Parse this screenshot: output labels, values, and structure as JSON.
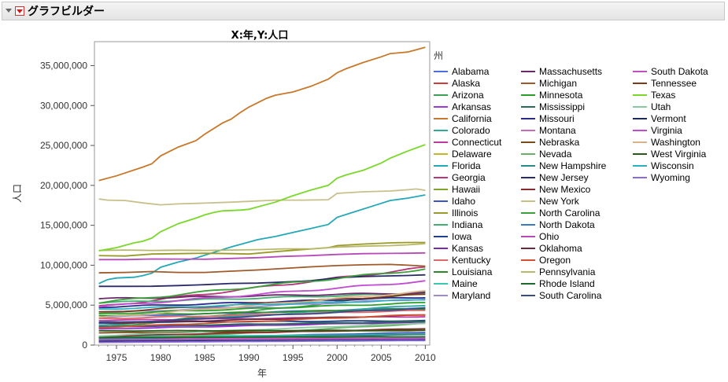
{
  "window": {
    "title": "グラフビルダー"
  },
  "chart_data": {
    "type": "line",
    "title": "X:年,Y:人口",
    "xlabel": "年",
    "ylabel": "人口",
    "legend_title": "州",
    "legend_position": "right",
    "xlim": [
      1972.5,
      2010.5
    ],
    "ylim": [
      0,
      38000000
    ],
    "xticks": [
      1975,
      1980,
      1985,
      1990,
      1995,
      2000,
      2005,
      2010
    ],
    "xtick_labels": [
      "1975",
      "1980",
      "1985",
      "1990",
      "1995",
      "2000",
      "2005",
      "2010"
    ],
    "yticks": [
      0,
      5000000,
      10000000,
      15000000,
      20000000,
      25000000,
      30000000,
      35000000
    ],
    "ytick_labels": [
      "0",
      "5,000,000",
      "10,000,000",
      "15,000,000",
      "20,000,000",
      "25,000,000",
      "30,000,000",
      "35,000,000"
    ],
    "grid": false,
    "series": [
      {
        "name": "Alabama",
        "color": "#4a6ee0",
        "start": 3500000,
        "end": 4700000
      },
      {
        "name": "Alaska",
        "color": "#d13a3a",
        "start": 330000,
        "end": 700000
      },
      {
        "name": "Arizona",
        "color": "#3aa055",
        "start": 2100000,
        "end": 6600000
      },
      {
        "name": "Arkansas",
        "color": "#9b3ad6",
        "start": 2000000,
        "end": 2900000
      },
      {
        "name": "California",
        "color": "#c8782a",
        "start": 20600000,
        "end": 37300000,
        "points": [
          [
            1973,
            20600000
          ],
          [
            1975,
            21200000
          ],
          [
            1978,
            22300000
          ],
          [
            1979,
            22700000
          ],
          [
            1980,
            23700000
          ],
          [
            1982,
            24800000
          ],
          [
            1984,
            25600000
          ],
          [
            1985,
            26400000
          ],
          [
            1987,
            27800000
          ],
          [
            1988,
            28300000
          ],
          [
            1989,
            29100000
          ],
          [
            1990,
            29800000
          ],
          [
            1992,
            30900000
          ],
          [
            1993,
            31300000
          ],
          [
            1995,
            31700000
          ],
          [
            1997,
            32400000
          ],
          [
            1999,
            33300000
          ],
          [
            2000,
            34100000
          ],
          [
            2001,
            34600000
          ],
          [
            2003,
            35400000
          ],
          [
            2005,
            36100000
          ],
          [
            2006,
            36500000
          ],
          [
            2008,
            36700000
          ],
          [
            2009,
            37000000
          ],
          [
            2010,
            37300000
          ]
        ]
      },
      {
        "name": "Colorado",
        "color": "#2aab9b",
        "start": 2500000,
        "end": 5000000
      },
      {
        "name": "Connecticut",
        "color": "#c03aa0",
        "start": 3100000,
        "end": 3570000
      },
      {
        "name": "Delaware",
        "color": "#c9b52a",
        "start": 570000,
        "end": 900000
      },
      {
        "name": "Florida",
        "color": "#24a8b8",
        "start": 7700000,
        "end": 18800000,
        "points": [
          [
            1973,
            7700000
          ],
          [
            1974,
            8200000
          ],
          [
            1975,
            8400000
          ],
          [
            1977,
            8500000
          ],
          [
            1978,
            8700000
          ],
          [
            1979,
            9000000
          ],
          [
            1980,
            9750000
          ],
          [
            1982,
            10400000
          ],
          [
            1984,
            10900000
          ],
          [
            1986,
            11600000
          ],
          [
            1988,
            12300000
          ],
          [
            1990,
            12900000
          ],
          [
            1991,
            13200000
          ],
          [
            1993,
            13600000
          ],
          [
            1995,
            14100000
          ],
          [
            1997,
            14600000
          ],
          [
            1999,
            15100000
          ],
          [
            2000,
            16000000
          ],
          [
            2002,
            16700000
          ],
          [
            2004,
            17400000
          ],
          [
            2006,
            18100000
          ],
          [
            2008,
            18400000
          ],
          [
            2010,
            18800000
          ]
        ]
      },
      {
        "name": "Georgia",
        "color": "#b8357a",
        "start": 4800000,
        "end": 9700000
      },
      {
        "name": "Hawaii",
        "color": "#7ea52a",
        "start": 830000,
        "end": 1360000
      },
      {
        "name": "Idaho",
        "color": "#3a56c0",
        "start": 780000,
        "end": 1570000
      },
      {
        "name": "Illinois",
        "color": "#9a9a2a",
        "start": 11200000,
        "end": 12900000,
        "points": [
          [
            1973,
            11200000
          ],
          [
            1976,
            11150000
          ],
          [
            1979,
            11400000
          ],
          [
            1982,
            11450000
          ],
          [
            1985,
            11500000
          ],
          [
            1988,
            11450000
          ],
          [
            1990,
            11400000
          ],
          [
            1993,
            11700000
          ],
          [
            1996,
            11950000
          ],
          [
            1999,
            12200000
          ],
          [
            2000,
            12450000
          ],
          [
            2003,
            12650000
          ],
          [
            2006,
            12800000
          ],
          [
            2008,
            12850000
          ],
          [
            2010,
            12850000
          ]
        ]
      },
      {
        "name": "Indiana",
        "color": "#40b070",
        "start": 5300000,
        "end": 6500000
      },
      {
        "name": "Iowa",
        "color": "#1e3f8a",
        "start": 2850000,
        "end": 3050000
      },
      {
        "name": "Kansas",
        "color": "#7a2ab0",
        "start": 2270000,
        "end": 2850000
      },
      {
        "name": "Kentucky",
        "color": "#e06a6a",
        "start": 3300000,
        "end": 4340000
      },
      {
        "name": "Louisiana",
        "color": "#2a8a2a",
        "start": 3700000,
        "end": 4530000
      },
      {
        "name": "Maine",
        "color": "#3ac8b0",
        "start": 1050000,
        "end": 1330000
      },
      {
        "name": "Maryland",
        "color": "#a08ad8",
        "start": 4000000,
        "end": 5770000
      },
      {
        "name": "Massachusetts",
        "color": "#6a2a6a",
        "start": 5800000,
        "end": 6550000
      },
      {
        "name": "Michigan",
        "color": "#a05a2a",
        "start": 9050000,
        "end": 9900000,
        "points": [
          [
            1973,
            9050000
          ],
          [
            1976,
            9100000
          ],
          [
            1979,
            9200000
          ],
          [
            1982,
            9100000
          ],
          [
            1985,
            9100000
          ],
          [
            1988,
            9250000
          ],
          [
            1991,
            9400000
          ],
          [
            1994,
            9600000
          ],
          [
            1997,
            9800000
          ],
          [
            2000,
            9950000
          ],
          [
            2003,
            10050000
          ],
          [
            2006,
            10100000
          ],
          [
            2008,
            10000000
          ],
          [
            2010,
            9880000
          ]
        ]
      },
      {
        "name": "Minnesota",
        "color": "#2aa02a",
        "start": 3900000,
        "end": 5300000
      },
      {
        "name": "Mississippi",
        "color": "#2a6a5a",
        "start": 2300000,
        "end": 2970000
      },
      {
        "name": "Missouri",
        "color": "#2a2a8a",
        "start": 4750000,
        "end": 5990000
      },
      {
        "name": "Montana",
        "color": "#c86ab8",
        "start": 720000,
        "end": 990000
      },
      {
        "name": "Nebraska",
        "color": "#7a4a1a",
        "start": 1530000,
        "end": 1830000
      },
      {
        "name": "Nevada",
        "color": "#6ab06a",
        "start": 540000,
        "end": 2700000
      },
      {
        "name": "New Hampshire",
        "color": "#2a8a8a",
        "start": 790000,
        "end": 1320000
      },
      {
        "name": "New Jersey",
        "color": "#2a2a6a",
        "start": 7350000,
        "end": 8790000,
        "points": [
          [
            1973,
            7350000
          ],
          [
            1976,
            7350000
          ],
          [
            1979,
            7360000
          ],
          [
            1982,
            7450000
          ],
          [
            1985,
            7560000
          ],
          [
            1988,
            7720000
          ],
          [
            1991,
            7760000
          ],
          [
            1994,
            7900000
          ],
          [
            1997,
            8050000
          ],
          [
            2000,
            8430000
          ],
          [
            2003,
            8580000
          ],
          [
            2006,
            8660000
          ],
          [
            2008,
            8710000
          ],
          [
            2010,
            8790000
          ]
        ]
      },
      {
        "name": "New Mexico",
        "color": "#8a2a2a",
        "start": 1100000,
        "end": 2060000
      },
      {
        "name": "New York",
        "color": "#c8c08a",
        "start": 18300000,
        "end": 19400000,
        "points": [
          [
            1973,
            18300000
          ],
          [
            1974,
            18150000
          ],
          [
            1976,
            18100000
          ],
          [
            1978,
            17800000
          ],
          [
            1980,
            17560000
          ],
          [
            1982,
            17680000
          ],
          [
            1985,
            17780000
          ],
          [
            1988,
            17900000
          ],
          [
            1990,
            18000000
          ],
          [
            1993,
            18150000
          ],
          [
            1996,
            18150000
          ],
          [
            1999,
            18200000
          ],
          [
            2000,
            19000000
          ],
          [
            2003,
            19200000
          ],
          [
            2006,
            19300000
          ],
          [
            2008,
            19450000
          ],
          [
            2009,
            19550000
          ],
          [
            2010,
            19380000
          ]
        ]
      },
      {
        "name": "North Carolina",
        "color": "#3aa03a",
        "start": 5300000,
        "end": 9500000
      },
      {
        "name": "North Dakota",
        "color": "#3a7ac0",
        "start": 630000,
        "end": 680000
      },
      {
        "name": "Ohio",
        "color": "#b84ab8",
        "start": 10700000,
        "end": 11540000,
        "points": [
          [
            1973,
            10700000
          ],
          [
            1976,
            10700000
          ],
          [
            1979,
            10780000
          ],
          [
            1982,
            10770000
          ],
          [
            1985,
            10750000
          ],
          [
            1988,
            10850000
          ],
          [
            1991,
            10950000
          ],
          [
            1994,
            11100000
          ],
          [
            1997,
            11200000
          ],
          [
            2000,
            11350000
          ],
          [
            2003,
            11450000
          ],
          [
            2006,
            11480000
          ],
          [
            2008,
            11500000
          ],
          [
            2010,
            11540000
          ]
        ]
      },
      {
        "name": "Oklahoma",
        "color": "#6a2a3a",
        "start": 2700000,
        "end": 3750000
      },
      {
        "name": "Oregon",
        "color": "#d05030",
        "start": 2200000,
        "end": 3830000
      },
      {
        "name": "Pennsylvania",
        "color": "#b8b86a",
        "start": 11850000,
        "end": 12700000,
        "points": [
          [
            1973,
            11850000
          ],
          [
            1976,
            11900000
          ],
          [
            1979,
            11850000
          ],
          [
            1982,
            11880000
          ],
          [
            1985,
            11850000
          ],
          [
            1988,
            11900000
          ],
          [
            1991,
            11950000
          ],
          [
            1994,
            12050000
          ],
          [
            1997,
            12050000
          ],
          [
            2000,
            12280000
          ],
          [
            2003,
            12380000
          ],
          [
            2006,
            12450000
          ],
          [
            2008,
            12550000
          ],
          [
            2010,
            12700000
          ]
        ]
      },
      {
        "name": "Rhode Island",
        "color": "#1a6a2a",
        "start": 950000,
        "end": 1050000
      },
      {
        "name": "South Carolina",
        "color": "#3a4a8a",
        "start": 2700000,
        "end": 4620000
      },
      {
        "name": "South Dakota",
        "color": "#c050c0",
        "start": 680000,
        "end": 815000
      },
      {
        "name": "Tennessee",
        "color": "#7a3a1a",
        "start": 4100000,
        "end": 6340000
      },
      {
        "name": "Texas",
        "color": "#7ad82a",
        "start": 11800000,
        "end": 25100000,
        "points": [
          [
            1973,
            11800000
          ],
          [
            1975,
            12200000
          ],
          [
            1976,
            12500000
          ],
          [
            1977,
            12800000
          ],
          [
            1978,
            13000000
          ],
          [
            1979,
            13400000
          ],
          [
            1980,
            14200000
          ],
          [
            1982,
            15200000
          ],
          [
            1984,
            15900000
          ],
          [
            1985,
            16300000
          ],
          [
            1986,
            16600000
          ],
          [
            1987,
            16800000
          ],
          [
            1989,
            16900000
          ],
          [
            1990,
            17000000
          ],
          [
            1991,
            17300000
          ],
          [
            1993,
            17900000
          ],
          [
            1995,
            18700000
          ],
          [
            1997,
            19400000
          ],
          [
            1999,
            20000000
          ],
          [
            2000,
            20900000
          ],
          [
            2001,
            21300000
          ],
          [
            2003,
            21900000
          ],
          [
            2005,
            22800000
          ],
          [
            2006,
            23400000
          ],
          [
            2008,
            24300000
          ],
          [
            2010,
            25100000
          ]
        ]
      },
      {
        "name": "Utah",
        "color": "#8ac8a0",
        "start": 1150000,
        "end": 2760000
      },
      {
        "name": "Vermont",
        "color": "#1a2a5a",
        "start": 460000,
        "end": 625000
      },
      {
        "name": "Virginia",
        "color": "#c04ad0",
        "start": 4800000,
        "end": 8000000
      },
      {
        "name": "Washington",
        "color": "#d8b48a",
        "start": 3400000,
        "end": 6720000
      },
      {
        "name": "West Virginia",
        "color": "#2a5a1a",
        "start": 1780000,
        "end": 1850000
      },
      {
        "name": "Wisconsin",
        "color": "#2ab0c0",
        "start": 4500000,
        "end": 5680000
      },
      {
        "name": "Wyoming",
        "color": "#8a6ae0",
        "start": 350000,
        "end": 560000
      }
    ]
  }
}
